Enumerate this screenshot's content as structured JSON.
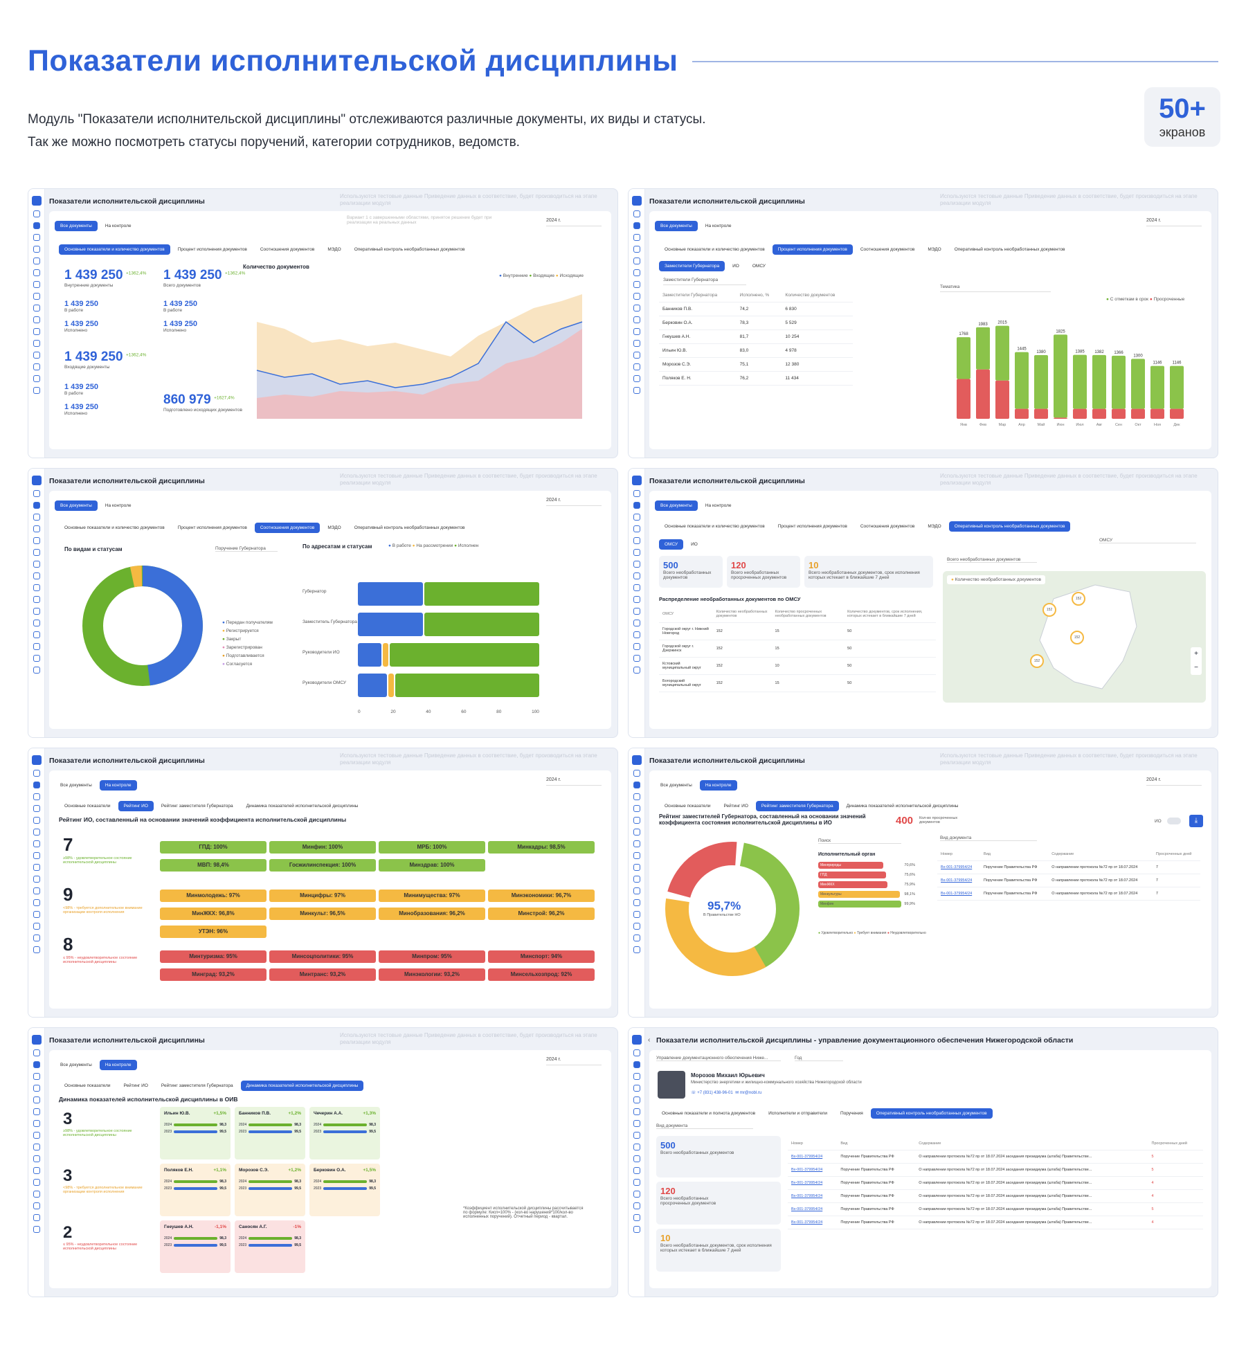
{
  "header": {
    "title": "Показатели исполнительской дисциплины",
    "desc1": "Модуль \"Показатели исполнительской дисциплины\" отслеживаются различные документы, их виды и статусы.",
    "desc2": "Так же можно посмотреть статусы поручений, категории сотрудников, ведомств.",
    "badge_num": "50+",
    "badge_label": "экранов"
  },
  "common": {
    "screen_title": "Показатели исполнительской дисциплины",
    "test_note": "Используются тестовые данные\nПриведение данных в соответствие, будет производиться на этапе реализации модуля",
    "tab_all": "Все документы",
    "tab_control": "На контроле",
    "year": "2024 г.",
    "t1": "Основные показатели и количество документов",
    "t2": "Процент исполнения документов",
    "t3": "Соотношения документов",
    "t4": "МЭДО",
    "t5": "Оперативный контроль необработанных документов"
  },
  "s1": {
    "variant": "Вариант 1 с завершенными областями, принятое решение будет при реализации на реальных данных",
    "k1v": "1 439 250",
    "k1d": "+1362,4%",
    "k1l": "Внутренние документы",
    "k2v": "1 439 250",
    "k2d": "+1362,4%",
    "k2l": "Всего документов",
    "sub1v": "1 439 250",
    "sub1l": "В работе",
    "sub2v": "1 439 250",
    "sub2l": "Исполнено",
    "k3v": "1 439 250",
    "k3d": "+1362,4%",
    "k3l": "Входящие документы",
    "k4v": "860 979",
    "k4d": "+1627,4%",
    "k4l": "Подготовлено исходящих документов",
    "chart_title": "Количество документов",
    "legend": [
      "Внутренние",
      "Входящие",
      "Исходящие"
    ]
  },
  "s2": {
    "tabs": [
      "Заместители Губернатора",
      "ИО",
      "ОМСУ"
    ],
    "select": "Заместители Губернатора",
    "topic": "Тематика",
    "cols": [
      "Заместители Губернатора",
      "Исполнено, %",
      "Количество документов"
    ],
    "rows": [
      [
        "Банников П.В.",
        "74,2",
        "6 830"
      ],
      [
        "Берковин О.А.",
        "78,3",
        "5 529"
      ],
      [
        "Гнеушев А.Н.",
        "81,7",
        "10 254"
      ],
      [
        "Ильин Ю.В.",
        "83,0",
        "4 978"
      ],
      [
        "Морозов С.Э.",
        "75,1",
        "12 380"
      ],
      [
        "Поляков Е. Н.",
        "76,2",
        "11 434"
      ]
    ],
    "legend": [
      "С отметкам в срок",
      "Просроченные"
    ]
  },
  "s3": {
    "left_title": "По видам и статусам",
    "select": "Поручение Губернатора",
    "legend": [
      "Передан получателям",
      "Регистрируется",
      "Закрыт",
      "Зарегистрирован",
      "Подготавливается",
      "Согласуется"
    ],
    "right_title": "По адресатам и статусам",
    "rlegend": [
      "В работе",
      "На рассмотрении",
      "Исполнен"
    ],
    "rows": [
      "Губернатор",
      "Заместитель Губернатора",
      "Руководители ИО",
      "Руководители ОМСУ"
    ],
    "ticks": [
      "0",
      "20",
      "40",
      "60",
      "80",
      "100"
    ]
  },
  "s4": {
    "tabs": [
      "ОМСУ",
      "ИО"
    ],
    "select": "ОМСУ",
    "kpi": [
      {
        "v": "500",
        "l": "Всего необработанных документов"
      },
      {
        "v": "120",
        "l": "Всего необработанных просроченных документов"
      },
      {
        "v": "10",
        "l": "Всего необработанных документов, срок исполнения которых истекает в ближайшие 7 дней"
      }
    ],
    "dist_title": "Распределение необработанных документов по ОМСУ",
    "cols": [
      "ОМСУ",
      "Количество необработанных документов",
      "Количество просроченных необработанных документов",
      "Количество документов, срок исполнения, которых истекает в ближайшие 7 дней"
    ],
    "rows": [
      [
        "Городской округ г. Нижний Новгород",
        "152",
        "15",
        "50"
      ],
      [
        "Городской округ г. Дзержинск",
        "152",
        "15",
        "50"
      ],
      [
        "Кстовский муниципальный округ",
        "152",
        "10",
        "50"
      ],
      [
        "Богородский муниципальный округ",
        "152",
        "15",
        "50"
      ]
    ],
    "map_select": "Всего необработанных документов",
    "map_legend": "Количество необработанных документов",
    "pin": "152"
  },
  "s5": {
    "tabs": [
      "Основные показатели",
      "Рейтинг ИО",
      "Рейтинг заместителя Губернатора",
      "Динамика показателей исполнительской дисциплины"
    ],
    "heading": "Рейтинг ИО, составленный на основании значений коэффициента исполнительской дисциплины",
    "g1n": "7",
    "g1t": "≥98% - удовлетворительное состояние исполнительской дисциплины",
    "g2n": "9",
    "g2t": "<98% - требуется дополнительное внимание организации контроля исполнения",
    "g3n": "8",
    "g3t": "≤ 95% - неудовлетворительное состояние исполнительской дисциплины",
    "green": [
      "ГПД: 100%",
      "Минфин: 100%",
      "МРБ: 100%",
      "Минкадры: 98,5%",
      "МВП: 98,4%",
      "Госжилинспекция: 100%",
      "Минздрав: 100%"
    ],
    "yellow": [
      "Минмолодежь: 97%",
      "Минцифры: 97%",
      "Минимущества: 97%",
      "Минэкономики: 96,7%",
      "МинЖКХ: 96,8%",
      "Минкульт: 96,5%",
      "Минобразования: 96,2%",
      "Минстрой: 96,2%",
      "УТЭН: 96%"
    ],
    "red": [
      "Минтуризма: 95%",
      "Минсоцполитики: 95%",
      "Минпром: 95%",
      "Минспорт: 94%",
      "Минград: 93,2%",
      "Минтранс: 93,2%",
      "Минэкологии: 93,2%",
      "Минсельхозпрод: 92%"
    ]
  },
  "s6": {
    "heading": "Рейтинг заместителей Губернатора, составленный на основании значений коэффициента состояния исполнительской дисциплины в ИО",
    "count": "400",
    "count_l": "Кол-во просроченных документов",
    "toggle": "ИО",
    "center_v": "95,7%",
    "center_l": "В Правительстве НО",
    "search": "Поиск",
    "org": "Исполнительный орган",
    "doc_kind": "Вид документа",
    "cols": [
      "Номер",
      "Вид",
      "Содержание",
      "Просроченных дней"
    ],
    "rows": [
      [
        "Вх-001-379954/24",
        "Поручение Правительства РФ",
        "О направлении протокола №72 пр от 18.07.2024",
        "7"
      ],
      [
        "Вх-001-379954/24",
        "Поручение Правительства РФ",
        "О направлении протокола №72 пр от 18.07.2024",
        "7"
      ],
      [
        "Вх-001-379954/24",
        "Поручение Правительства РФ",
        "О направлении протокола №72 пр от 18.07.2024",
        "7"
      ]
    ],
    "bars": [
      [
        "Минприроды",
        "70,6%"
      ],
      [
        "ГПД",
        "75,6%"
      ],
      [
        "МинЖКХ",
        "75,9%"
      ],
      [
        "Минкультуры",
        "98,1%"
      ],
      [
        "Минфин",
        "99,9%"
      ]
    ],
    "legend": [
      "Удовлетворительно",
      "Требует внимания",
      "Неудовлетворительно"
    ]
  },
  "s7": {
    "heading": "Динамика показателей исполнительской дисциплины в ОИВ",
    "groups": [
      {
        "n": "3",
        "t": "≥98% - удовлетворительное состояние исполнительской дисциплины"
      },
      {
        "n": "3",
        "t": "<98% - требуется дополнительное внимание организации контроля исполнения"
      },
      {
        "n": "2",
        "t": "≤ 95% - неудовлетворительное состояние исполнительской дисциплины"
      }
    ],
    "people": [
      [
        "Ильин Ю.В.",
        "+1,5%"
      ],
      [
        "Банников П.В.",
        "+1,2%"
      ],
      [
        "Чечерин А.А.",
        "+1,3%"
      ],
      [
        "Поляков Е.Н.",
        "+1,1%"
      ],
      [
        "Морозов С.Э.",
        "+1,2%"
      ],
      [
        "Берковин О.А.",
        "+1,5%"
      ],
      [
        "Гнеушев А.Н.",
        "-1,1%"
      ],
      [
        "Саносян А.Г.",
        "-1%"
      ]
    ],
    "y1": "2024",
    "y2": "2023",
    "v1": "98,3",
    "v2": "99,5",
    "footnote": "*Коэффициент исполнительской дисциплины рассчитывается по формуле: Кисп=100% - (кол-во нарушений*100/кол-во исполненных поручений). Отчетный период - квартал."
  },
  "s8": {
    "title": "Показатели исполнительской дисциплины  - управление документационного обеспечения Нижегородской области",
    "select": "Управление документационного обеспечения Ниже...",
    "year": "Год",
    "name": "Морозов Михаил Юрьевич",
    "role": "Министерство энергетики и жилищно-коммунального хозяйства Нижегородской области",
    "phone": "+7 (831) 438-96-01",
    "email": "mr@nobl.ru",
    "tabs": [
      "Основные показатели и полнота документов",
      "Исполнители и отправители",
      "Поручения",
      "Оперативный контроль необработанных документов"
    ],
    "doc_kind": "Вид документа",
    "kpi": [
      {
        "v": "500",
        "l": "Всего необработанных документов"
      },
      {
        "v": "120",
        "l": "Всего необработанных просроченных документов"
      },
      {
        "v": "10",
        "l": "Всего необработанных документов, срок исполнения которых истекает в ближайшие 7 дней"
      }
    ],
    "cols": [
      "Номер",
      "Вид",
      "Содержание",
      "Просроченных дней"
    ],
    "num": "Вх-001-379954/24",
    "kind": "Поручение Правительства РФ",
    "content": "О направлении протокола №72 пр от 18.07.2024 заседания президиума (штаба) Правительстве...",
    "days": [
      "5",
      "5",
      "4",
      "4",
      "5",
      "4"
    ]
  }
}
